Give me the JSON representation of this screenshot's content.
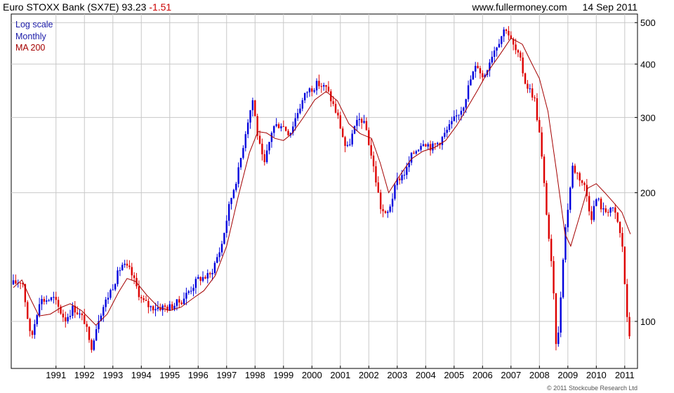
{
  "header": {
    "instrument": "Euro STOXX Bank (SX7E)",
    "last_price": "93.23",
    "change": "-1.51",
    "website": "www.fullermoney.com",
    "date": "14 Sep 2011"
  },
  "legend": {
    "scale": "Log scale",
    "period": "Monthly",
    "ma": "MA 200"
  },
  "footer": {
    "copyright": "© 2011 Stockcube Research Ltd"
  },
  "colors": {
    "up": "#0000dd",
    "down": "#dd0000",
    "ma": "#a40000",
    "grid": "#c8c8c8",
    "scale_text": "#1a1aa8",
    "ma_text": "#a40000"
  },
  "chart_data": {
    "type": "candlestick",
    "title": "Euro STOXX Bank (SX7E) 93.23 -1.51",
    "y_scale": "log",
    "ylim": [
      80,
      510
    ],
    "y_ticks": [
      100,
      200,
      300,
      400,
      500
    ],
    "xlim": [
      1990.0,
      2011.85
    ],
    "x_ticks": [
      "1991",
      "1992",
      "1993",
      "1994",
      "1995",
      "1996",
      "1997",
      "1998",
      "1999",
      "2000",
      "2001",
      "2002",
      "2003",
      "2004",
      "2005",
      "2006",
      "2007",
      "2008",
      "2009",
      "2010",
      "2011"
    ],
    "grid": true,
    "price_path": [
      [
        1990.0,
        122
      ],
      [
        1990.4,
        125
      ],
      [
        1990.7,
        90
      ],
      [
        1991.0,
        112
      ],
      [
        1991.5,
        113
      ],
      [
        1991.9,
        101
      ],
      [
        1992.2,
        108
      ],
      [
        1992.6,
        100
      ],
      [
        1992.8,
        86
      ],
      [
        1993.1,
        103
      ],
      [
        1993.6,
        122
      ],
      [
        1993.9,
        136
      ],
      [
        1994.2,
        131
      ],
      [
        1994.6,
        112
      ],
      [
        1994.9,
        108
      ],
      [
        1995.2,
        108
      ],
      [
        1995.6,
        108
      ],
      [
        1996.0,
        112
      ],
      [
        1996.6,
        126
      ],
      [
        1997.0,
        128
      ],
      [
        1997.4,
        150
      ],
      [
        1997.7,
        190
      ],
      [
        1998.0,
        225
      ],
      [
        1998.3,
        290
      ],
      [
        1998.5,
        330
      ],
      [
        1998.7,
        265
      ],
      [
        1998.9,
        230
      ],
      [
        1999.2,
        285
      ],
      [
        1999.5,
        290
      ],
      [
        1999.8,
        275
      ],
      [
        2000.1,
        312
      ],
      [
        2000.4,
        345
      ],
      [
        2000.8,
        360
      ],
      [
        2001.1,
        350
      ],
      [
        2001.3,
        325
      ],
      [
        2001.5,
        300
      ],
      [
        2001.8,
        250
      ],
      [
        2002.1,
        285
      ],
      [
        2002.3,
        300
      ],
      [
        2002.5,
        280
      ],
      [
        2002.8,
        220
      ],
      [
        2003.0,
        185
      ],
      [
        2003.2,
        175
      ],
      [
        2003.6,
        215
      ],
      [
        2003.9,
        225
      ],
      [
        2004.1,
        245
      ],
      [
        2004.5,
        265
      ],
      [
        2004.8,
        255
      ],
      [
        2005.1,
        265
      ],
      [
        2005.5,
        290
      ],
      [
        2005.9,
        320
      ],
      [
        2006.2,
        375
      ],
      [
        2006.4,
        400
      ],
      [
        2006.6,
        370
      ],
      [
        2006.9,
        420
      ],
      [
        2007.2,
        460
      ],
      [
        2007.4,
        490
      ],
      [
        2007.6,
        450
      ],
      [
        2007.9,
        410
      ],
      [
        2008.1,
        360
      ],
      [
        2008.4,
        335
      ],
      [
        2008.6,
        270
      ],
      [
        2008.85,
        175
      ],
      [
        2009.05,
        125
      ],
      [
        2009.2,
        82
      ],
      [
        2009.45,
        155
      ],
      [
        2009.75,
        230
      ],
      [
        2009.95,
        220
      ],
      [
        2010.2,
        205
      ],
      [
        2010.4,
        175
      ],
      [
        2010.6,
        195
      ],
      [
        2010.85,
        180
      ],
      [
        2011.1,
        185
      ],
      [
        2011.3,
        175
      ],
      [
        2011.5,
        150
      ],
      [
        2011.7,
        93
      ]
    ],
    "ma200_path": [
      [
        1990.0,
        120
      ],
      [
        1990.3,
        125
      ],
      [
        1990.6,
        113
      ],
      [
        1990.9,
        103
      ],
      [
        1991.3,
        104
      ],
      [
        1991.7,
        108
      ],
      [
        1992.0,
        110
      ],
      [
        1992.4,
        106
      ],
      [
        1992.9,
        98
      ],
      [
        1993.3,
        104
      ],
      [
        1993.7,
        117
      ],
      [
        1994.0,
        126
      ],
      [
        1994.3,
        124
      ],
      [
        1994.7,
        115
      ],
      [
        1995.1,
        108
      ],
      [
        1995.5,
        106
      ],
      [
        1995.9,
        108
      ],
      [
        1996.3,
        113
      ],
      [
        1996.7,
        118
      ],
      [
        1997.1,
        128
      ],
      [
        1997.5,
        150
      ],
      [
        1997.9,
        195
      ],
      [
        1998.3,
        248
      ],
      [
        1998.6,
        278
      ],
      [
        1998.9,
        276
      ],
      [
        1999.2,
        268
      ],
      [
        1999.5,
        265
      ],
      [
        1999.8,
        275
      ],
      [
        2000.2,
        300
      ],
      [
        2000.6,
        330
      ],
      [
        2001.0,
        345
      ],
      [
        2001.4,
        328
      ],
      [
        2001.8,
        290
      ],
      [
        2002.2,
        275
      ],
      [
        2002.6,
        268
      ],
      [
        2002.9,
        235
      ],
      [
        2003.2,
        200
      ],
      [
        2003.6,
        220
      ],
      [
        2004.0,
        240
      ],
      [
        2004.4,
        250
      ],
      [
        2004.8,
        255
      ],
      [
        2005.2,
        265
      ],
      [
        2005.6,
        288
      ],
      [
        2005.95,
        315
      ],
      [
        2006.3,
        345
      ],
      [
        2006.7,
        385
      ],
      [
        2007.1,
        420
      ],
      [
        2007.5,
        460
      ],
      [
        2007.9,
        445
      ],
      [
        2008.2,
        405
      ],
      [
        2008.5,
        370
      ],
      [
        2008.8,
        310
      ],
      [
        2009.1,
        225
      ],
      [
        2009.4,
        160
      ],
      [
        2009.6,
        150
      ],
      [
        2009.9,
        175
      ],
      [
        2010.2,
        205
      ],
      [
        2010.5,
        210
      ],
      [
        2010.8,
        200
      ],
      [
        2011.1,
        190
      ],
      [
        2011.4,
        180
      ],
      [
        2011.7,
        160
      ]
    ]
  }
}
